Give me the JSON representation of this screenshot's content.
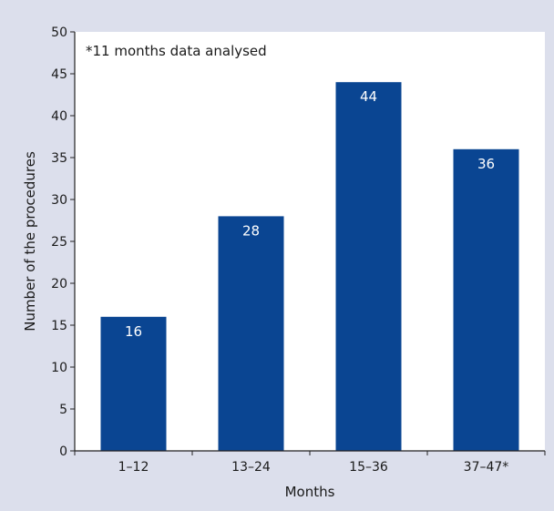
{
  "chart_data": {
    "type": "bar",
    "categories": [
      "1–12",
      "13–24",
      "15–36",
      "37–47*"
    ],
    "values": [
      16,
      28,
      44,
      36
    ],
    "data_labels": [
      "16",
      "28",
      "44",
      "36"
    ],
    "xlabel": "Months",
    "ylabel": "Number of the procedures",
    "ylim": [
      0,
      50
    ],
    "yticks": [
      0,
      5,
      10,
      15,
      20,
      25,
      30,
      35,
      40,
      45,
      50
    ],
    "annotation": "*11 months data analysed",
    "grid": false,
    "legend": "none",
    "colors": {
      "background": "#dcdfec",
      "plot_area": "#ffffff",
      "bar": "#0a4592",
      "bar_label": "#ffffff",
      "axis": "#222222",
      "text": "#1a1a1a"
    }
  }
}
